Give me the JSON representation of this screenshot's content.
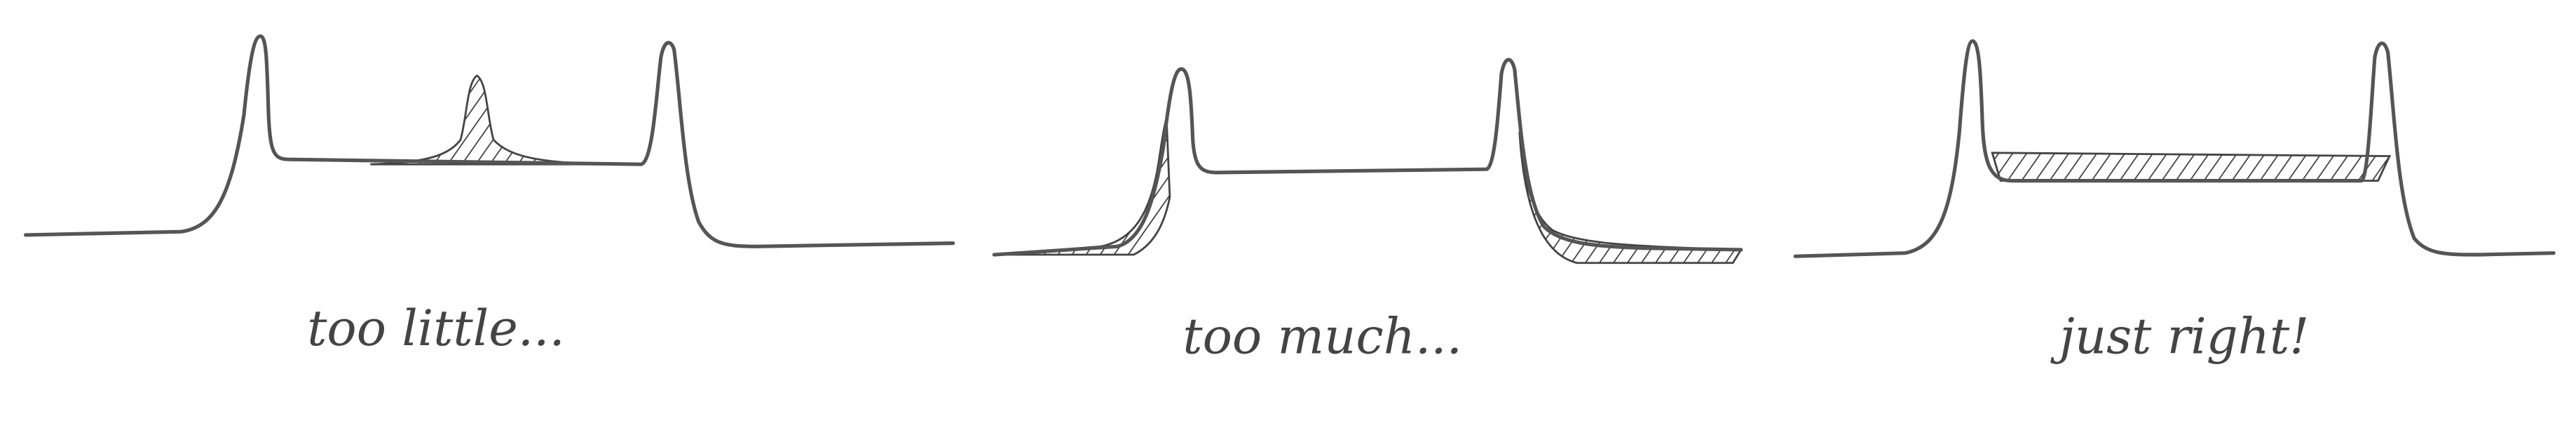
{
  "panels": [
    {
      "caption": "too little..."
    },
    {
      "caption": "too much..."
    },
    {
      "caption": "just right!"
    }
  ]
}
